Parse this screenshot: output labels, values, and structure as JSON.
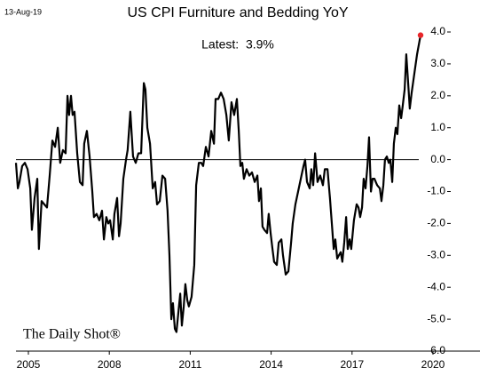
{
  "chart_data": {
    "type": "line",
    "title": "US CPI Furniture and Bedding YoY",
    "date": "13-Aug-19",
    "annotation": "Latest:  3.9%",
    "watermark": "The Daily Shot®",
    "xlim": [
      2004.54,
      2020
    ],
    "xticks": [
      2005,
      2008,
      2011,
      2014,
      2017,
      2020
    ],
    "ylim": [
      -6,
      4
    ],
    "yticks": [
      {
        "value": 4,
        "label": "4.0"
      },
      {
        "value": 3,
        "label": "3.0"
      },
      {
        "value": 2,
        "label": "2.0"
      },
      {
        "value": 1,
        "label": "1.0"
      },
      {
        "value": 0,
        "label": "0.0"
      },
      {
        "value": -1,
        "label": "-1.0"
      },
      {
        "value": -2,
        "label": "-2.0"
      },
      {
        "value": -3,
        "label": "-3.0"
      },
      {
        "value": -4,
        "label": "-4.0"
      },
      {
        "value": -5,
        "label": "-5.0"
      },
      {
        "value": -6,
        "label": "-6.0"
      }
    ],
    "zero_line": true,
    "last_point_color": "#e8262a",
    "series": [
      {
        "color": "#000000",
        "x": [
          2004.54,
          2004.61,
          2004.67,
          2004.77,
          2004.87,
          2004.97,
          2005.07,
          2005.13,
          2005.23,
          2005.33,
          2005.39,
          2005.49,
          2005.59,
          2005.69,
          2005.79,
          2005.89,
          2005.99,
          2006.09,
          2006.18,
          2006.28,
          2006.38,
          2006.45,
          2006.51,
          2006.58,
          2006.64,
          2006.71,
          2006.81,
          2006.91,
          2007.01,
          2007.07,
          2007.17,
          2007.27,
          2007.37,
          2007.43,
          2007.53,
          2007.63,
          2007.73,
          2007.8,
          2007.89,
          2007.96,
          2008.03,
          2008.13,
          2008.19,
          2008.29,
          2008.36,
          2008.42,
          2008.52,
          2008.62,
          2008.68,
          2008.78,
          2008.88,
          2008.98,
          2009.08,
          2009.18,
          2009.28,
          2009.34,
          2009.41,
          2009.51,
          2009.61,
          2009.7,
          2009.77,
          2009.87,
          2009.97,
          2010.07,
          2010.16,
          2010.23,
          2010.3,
          2010.36,
          2010.43,
          2010.49,
          2010.56,
          2010.63,
          2010.69,
          2010.76,
          2010.82,
          2010.89,
          2010.95,
          2011.05,
          2011.15,
          2011.22,
          2011.32,
          2011.41,
          2011.48,
          2011.58,
          2011.68,
          2011.78,
          2011.88,
          2011.94,
          2012.04,
          2012.14,
          2012.24,
          2012.34,
          2012.43,
          2012.53,
          2012.63,
          2012.73,
          2012.8,
          2012.86,
          2012.93,
          2012.99,
          2013.09,
          2013.19,
          2013.29,
          2013.39,
          2013.49,
          2013.55,
          2013.62,
          2013.68,
          2013.75,
          2013.85,
          2013.91,
          2013.98,
          2014.05,
          2014.11,
          2014.21,
          2014.28,
          2014.38,
          2014.44,
          2014.54,
          2014.64,
          2014.74,
          2014.8,
          2014.9,
          2015.0,
          2015.1,
          2015.2,
          2015.26,
          2015.33,
          2015.43,
          2015.49,
          2015.56,
          2015.63,
          2015.72,
          2015.82,
          2015.92,
          2015.99,
          2016.09,
          2016.18,
          2016.25,
          2016.32,
          2016.38,
          2016.45,
          2016.51,
          2016.58,
          2016.64,
          2016.71,
          2016.78,
          2016.84,
          2016.91,
          2016.97,
          2017.07,
          2017.17,
          2017.24,
          2017.3,
          2017.37,
          2017.43,
          2017.5,
          2017.57,
          2017.63,
          2017.7,
          2017.76,
          2017.83,
          2017.93,
          2018.03,
          2018.09,
          2018.16,
          2018.22,
          2018.29,
          2018.36,
          2018.42,
          2018.49,
          2018.55,
          2018.62,
          2018.68,
          2018.75,
          2018.82,
          2018.88,
          2018.95,
          2019.01,
          2019.08,
          2019.14,
          2019.21,
          2019.31,
          2019.41,
          2019.54
        ],
        "values": [
          -0.1,
          -0.9,
          -0.7,
          -0.2,
          -0.1,
          -0.3,
          -0.9,
          -2.2,
          -1.2,
          -0.6,
          -2.8,
          -1.3,
          -1.4,
          -1.5,
          -0.5,
          0.6,
          0.4,
          1.0,
          -0.1,
          0.3,
          0.2,
          2.0,
          1.4,
          2.0,
          1.4,
          1.5,
          0.2,
          -0.7,
          -0.8,
          0.5,
          0.9,
          0.1,
          -1.0,
          -1.8,
          -1.7,
          -1.9,
          -1.6,
          -2.5,
          -1.8,
          -2.0,
          -1.9,
          -2.5,
          -1.7,
          -1.2,
          -2.4,
          -2.0,
          -0.6,
          0.0,
          0.3,
          1.5,
          0.1,
          -0.1,
          0.2,
          0.2,
          2.4,
          2.2,
          1.0,
          0.5,
          -0.9,
          -0.7,
          -1.4,
          -1.3,
          -0.5,
          -0.6,
          -1.6,
          -3.0,
          -5.0,
          -4.5,
          -5.3,
          -5.4,
          -4.8,
          -4.2,
          -5.2,
          -4.6,
          -3.9,
          -4.4,
          -4.6,
          -4.3,
          -3.3,
          -0.8,
          -0.1,
          -0.1,
          -0.2,
          0.4,
          0.1,
          0.9,
          0.5,
          1.9,
          1.9,
          2.1,
          1.9,
          1.4,
          0.6,
          1.8,
          1.4,
          1.9,
          0.9,
          -0.2,
          -0.1,
          -0.6,
          -0.3,
          -0.5,
          -0.4,
          -0.7,
          -0.5,
          -1.3,
          -0.9,
          -2.1,
          -2.2,
          -2.3,
          -1.7,
          -2.3,
          -2.8,
          -3.2,
          -3.3,
          -2.6,
          -2.5,
          -3.0,
          -3.6,
          -3.5,
          -2.6,
          -2.0,
          -1.4,
          -1.0,
          -0.6,
          -0.2,
          0.0,
          -0.7,
          -0.9,
          -0.3,
          -0.8,
          0.2,
          -0.7,
          -0.5,
          -0.8,
          -0.3,
          -0.3,
          -1.2,
          -2.0,
          -2.8,
          -2.5,
          -3.1,
          -3.0,
          -2.9,
          -3.2,
          -2.6,
          -1.8,
          -2.8,
          -2.5,
          -2.8,
          -1.9,
          -1.4,
          -1.5,
          -1.8,
          -1.5,
          -0.6,
          -0.9,
          -0.2,
          0.7,
          -1.0,
          -0.6,
          -0.6,
          -0.8,
          -0.9,
          -1.3,
          -0.8,
          0.0,
          0.1,
          -0.1,
          0.0,
          -0.7,
          0.5,
          1.0,
          0.8,
          1.7,
          1.3,
          1.7,
          2.2,
          3.3,
          2.4,
          1.6,
          2.1,
          2.7,
          3.3,
          3.9
        ]
      }
    ]
  }
}
